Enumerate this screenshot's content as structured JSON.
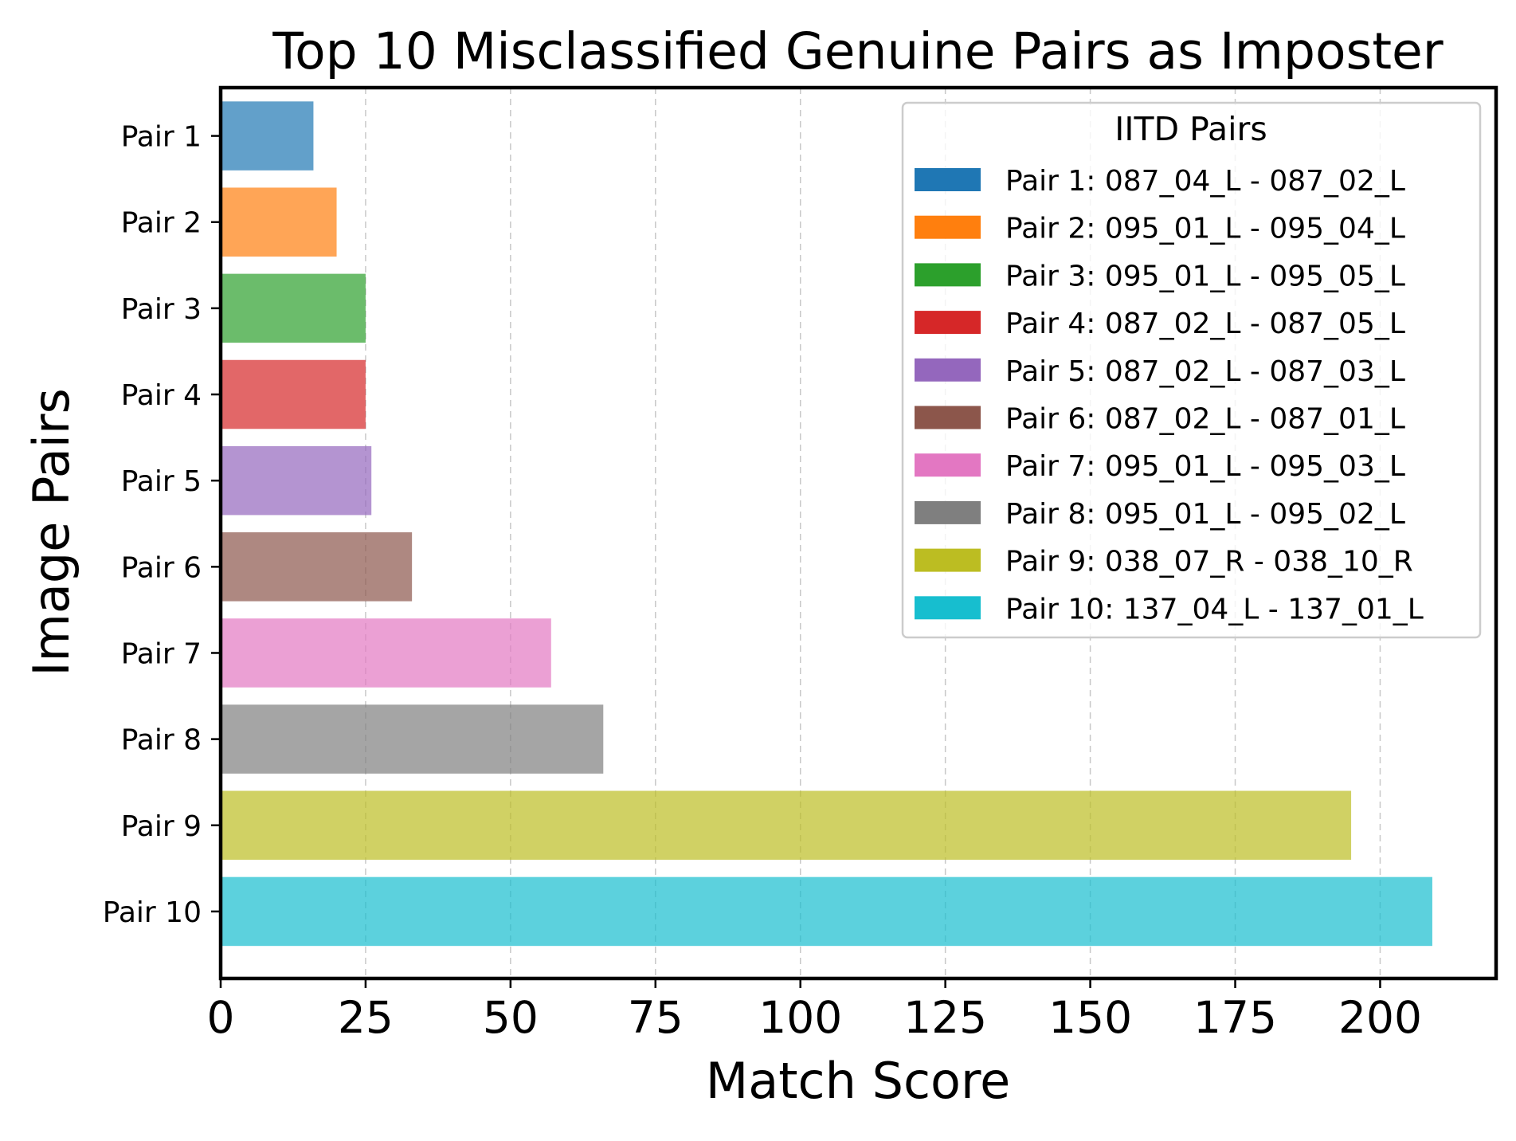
{
  "chart_data": {
    "type": "bar",
    "orientation": "horizontal",
    "title": "Top 10 Misclassified Genuine Pairs as Imposter",
    "xlabel": "Match Score",
    "ylabel": "Image Pairs",
    "categories": [
      "Pair 1",
      "Pair 2",
      "Pair 3",
      "Pair 4",
      "Pair 5",
      "Pair 6",
      "Pair 7",
      "Pair 8",
      "Pair 9",
      "Pair 10"
    ],
    "values": [
      16,
      20,
      25,
      25,
      26,
      33,
      57,
      66,
      195,
      209
    ],
    "colors": [
      "#1f77b4",
      "#ff7f0e",
      "#2ca02c",
      "#d62728",
      "#9467bd",
      "#8c564b",
      "#e377c2",
      "#7f7f7f",
      "#bcbd22",
      "#17becf"
    ],
    "bar_opacity": 0.7,
    "xlim": [
      0,
      220
    ],
    "xticks": [
      0,
      25,
      50,
      75,
      100,
      125,
      150,
      175,
      200
    ],
    "x_grid": true,
    "grid_style": "dashed",
    "legend": {
      "title": "IITD Pairs",
      "placement": "top-right",
      "entries": [
        "Pair 1: 087_04_L - 087_02_L",
        "Pair 2: 095_01_L - 095_04_L",
        "Pair 3: 095_01_L - 095_05_L",
        "Pair 4: 087_02_L - 087_05_L",
        "Pair 5: 087_02_L - 087_03_L",
        "Pair 6: 087_02_L - 087_01_L",
        "Pair 7: 095_01_L - 095_03_L",
        "Pair 8: 095_01_L - 095_02_L",
        "Pair 9: 038_07_R - 038_10_R",
        "Pair 10: 137_04_L - 137_01_L"
      ]
    }
  }
}
